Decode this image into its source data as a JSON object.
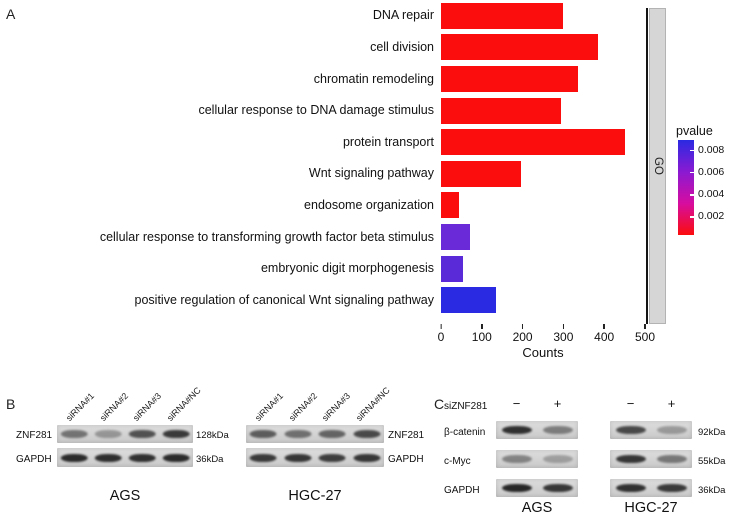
{
  "figure": {
    "panel_a_label": "A",
    "panel_b_label": "B",
    "panel_c_label": "C"
  },
  "chart_data": {
    "type": "bar",
    "orientation": "horizontal",
    "title": "",
    "xlabel": "Counts",
    "facet_label": "GO",
    "xlim": [
      0,
      500
    ],
    "xticks": [
      0,
      100,
      200,
      300,
      400,
      500
    ],
    "categories": [
      "DNA repair",
      "cell division",
      "chromatin remodeling",
      "cellular response to DNA damage stimulus",
      "protein transport",
      "Wnt signaling pathway",
      "endosome organization",
      "cellular response to transforming growth factor beta stimulus",
      "embryonic digit morphogenesis",
      "positive regulation of canonical Wnt signaling pathway"
    ],
    "values": [
      300,
      385,
      335,
      295,
      450,
      195,
      45,
      70,
      55,
      135
    ],
    "colors": [
      "#fb0d0d",
      "#fb0d0d",
      "#fb0d0d",
      "#fb0d0d",
      "#fb0d0d",
      "#fb0d0d",
      "#fb0d0d",
      "#6b2ad8",
      "#5a2ad8",
      "#2a2ae2"
    ],
    "legend": {
      "title": "pvalue",
      "ticks": [
        "0.008",
        "0.006",
        "0.004",
        "0.002"
      ],
      "gradient": [
        "#2a2ae2",
        "#8a1ad2",
        "#d60da0",
        "#fb0d0d"
      ]
    }
  },
  "panel_b": {
    "lane_labels": [
      "siRNA#1",
      "siRNA#2",
      "siRNA#3",
      "siRNA#NC"
    ],
    "left_blot": {
      "cell_line": "AGS",
      "rows": [
        {
          "protein": "ZNF281",
          "kda": "128kDa",
          "bands": [
            0.5,
            0.32,
            0.68,
            0.8
          ]
        },
        {
          "protein": "GAPDH",
          "kda": "36kDa",
          "bands": [
            0.88,
            0.86,
            0.85,
            0.88
          ]
        }
      ]
    },
    "right_blot": {
      "cell_line": "HGC-27",
      "rows": [
        {
          "protein": "ZNF281",
          "kda": "",
          "bands": [
            0.62,
            0.52,
            0.58,
            0.72
          ]
        },
        {
          "protein": "GAPDH",
          "kda": "",
          "bands": [
            0.8,
            0.82,
            0.78,
            0.82
          ]
        }
      ]
    }
  },
  "panel_c": {
    "treatment_label": "siZNF281",
    "lane_signs": [
      "−",
      "+"
    ],
    "row_labels": [
      {
        "protein": "β-catenin",
        "kda": "92kDa"
      },
      {
        "protein": "c-Myc",
        "kda": "55kDa"
      },
      {
        "protein": "GAPDH",
        "kda": "36kDa"
      }
    ],
    "blots": [
      {
        "cell_line": "AGS",
        "bands": [
          [
            0.85,
            0.45
          ],
          [
            0.42,
            0.28
          ],
          [
            0.9,
            0.82
          ]
        ]
      },
      {
        "cell_line": "HGC-27",
        "bands": [
          [
            0.72,
            0.3
          ],
          [
            0.82,
            0.48
          ],
          [
            0.85,
            0.8
          ]
        ]
      }
    ]
  }
}
